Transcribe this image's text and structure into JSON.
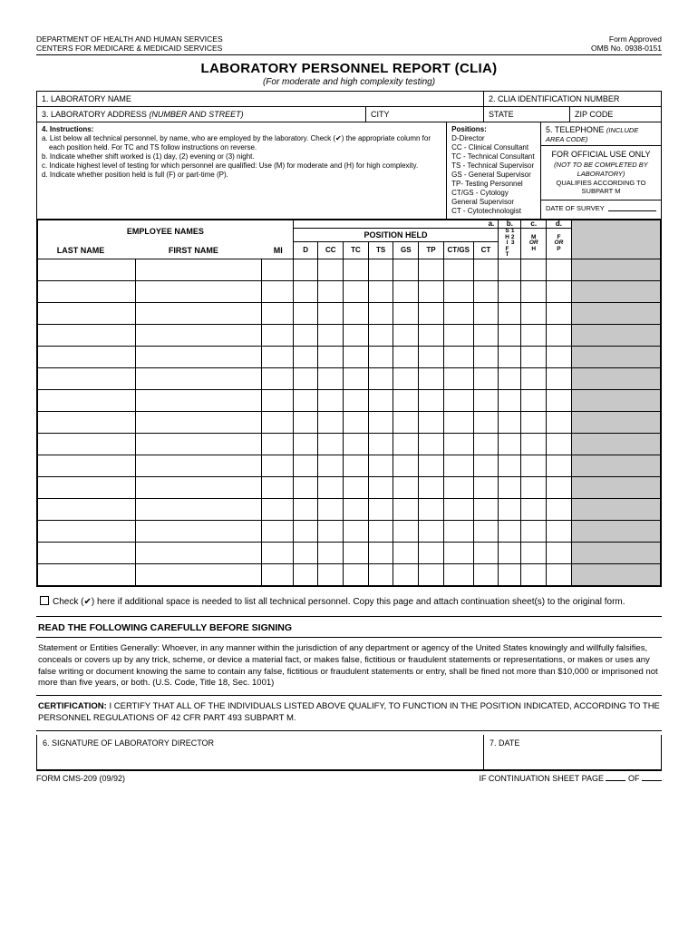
{
  "header": {
    "dept": "DEPARTMENT OF HEALTH AND HUMAN SERVICES",
    "centers": "CENTERS FOR MEDICARE & MEDICAID SERVICES",
    "approved": "Form Approved",
    "omb": "OMB No. 0938-0151"
  },
  "title": "LABORATORY PERSONNEL REPORT (CLIA)",
  "subtitle": "(For moderate and high complexity testing)",
  "fields": {
    "f1": "1. LABORATORY NAME",
    "f2": "2. CLIA IDENTIFICATION NUMBER",
    "f3": "3. LABORATORY ADDRESS",
    "f3note": "(NUMBER AND STREET)",
    "city": "CITY",
    "state": "STATE",
    "zip": "ZIP CODE",
    "f4": "4. Instructions:",
    "f5": "5. TELEPHONE",
    "f5note": "(INCLUDE AREA CODE)",
    "positions_hdr": "Positions:"
  },
  "instructions": {
    "a": "a. List below all technical personnel, by name, who are employed by the laboratory. Check (✔) the appropriate column for each position held. For TC and TS follow instructions on reverse.",
    "b": "b. Indicate whether shift worked is (1) day, (2) evening or (3) night.",
    "c": "c. Indicate highest level of testing for which personnel are qualified: Use (M) for moderate and (H) for high complexity.",
    "d": "d. Indicate whether position held is full (F) or part-time (P)."
  },
  "positions": [
    "D-Director",
    "CC - Clinical Consultant",
    "TC - Technical Consultant",
    "TS - Technical Supervisor",
    "GS - General Supervisor",
    "TP- Testing Personnel",
    "CT/GS - Cytology General Supervisor",
    "CT - Cytotechnologist"
  ],
  "official": {
    "l1": "FOR OFFICIAL USE ONLY",
    "l2": "(NOT TO BE COMPLETED BY LABORATORY)",
    "l3": "QUALIFIES ACCORDING TO SUBPART M",
    "dos": "DATE OF SURVEY"
  },
  "table": {
    "emp_names": "EMPLOYEE NAMES",
    "pos_held": "POSITION HELD",
    "a": "a.",
    "b": "b.",
    "c": "c.",
    "d": "d.",
    "last": "LAST NAME",
    "first": "FIRST NAME",
    "mi": "MI",
    "cols": {
      "D": "D",
      "CC": "CC",
      "TC": "TC",
      "TS": "TS",
      "GS": "GS",
      "TP": "TP",
      "CTGS": "CT/GS",
      "CT": "CT"
    },
    "shift": {
      "s": "S",
      "h": "H",
      "i": "I",
      "f": "F",
      "t": "T",
      "n1": "1",
      "n2": "2",
      "n3": "3"
    },
    "M": "M",
    "OR": "OR",
    "H": "H",
    "F": "F",
    "P": "P",
    "row_count": 15
  },
  "checkline": "Check (✔) here if additional space is needed to list all technical personnel. Copy this page and attach continuation sheet(s) to the original form.",
  "read_hdr": "READ THE FOLLOWING CAREFULLY BEFORE SIGNING",
  "statement": "Statement or Entities Generally: Whoever, in any manner within the jurisdiction of any department or agency of the United States knowingly and willfully falsifies, conceals or covers up by any trick, scheme, or device a material fact, or makes false, fictitious or fraudulent statements or representations, or makes or uses any false writing or document knowing the same to contain any false, fictitious or fraudulent statements or entry, shall be fined not more than $10,000 or imprisoned not more than five years, or both. (U.S. Code, Title 18, Sec. 1001)",
  "certification": "CERTIFICATION: I CERTIFY THAT ALL OF THE INDIVIDUALS LISTED ABOVE QUALIFY, TO FUNCTION IN THE POSITION INDICATED, ACCORDING TO THE PERSONNEL REGULATIONS OF 42 CFR PART 493 SUBPART M.",
  "sig": {
    "f6": "6.  SIGNATURE OF LABORATORY DIRECTOR",
    "f7": "7.  DATE"
  },
  "footer": {
    "form": "FORM CMS-209 (09/92)",
    "cont": "IF CONTINUATION SHEET PAGE",
    "of": "OF"
  }
}
